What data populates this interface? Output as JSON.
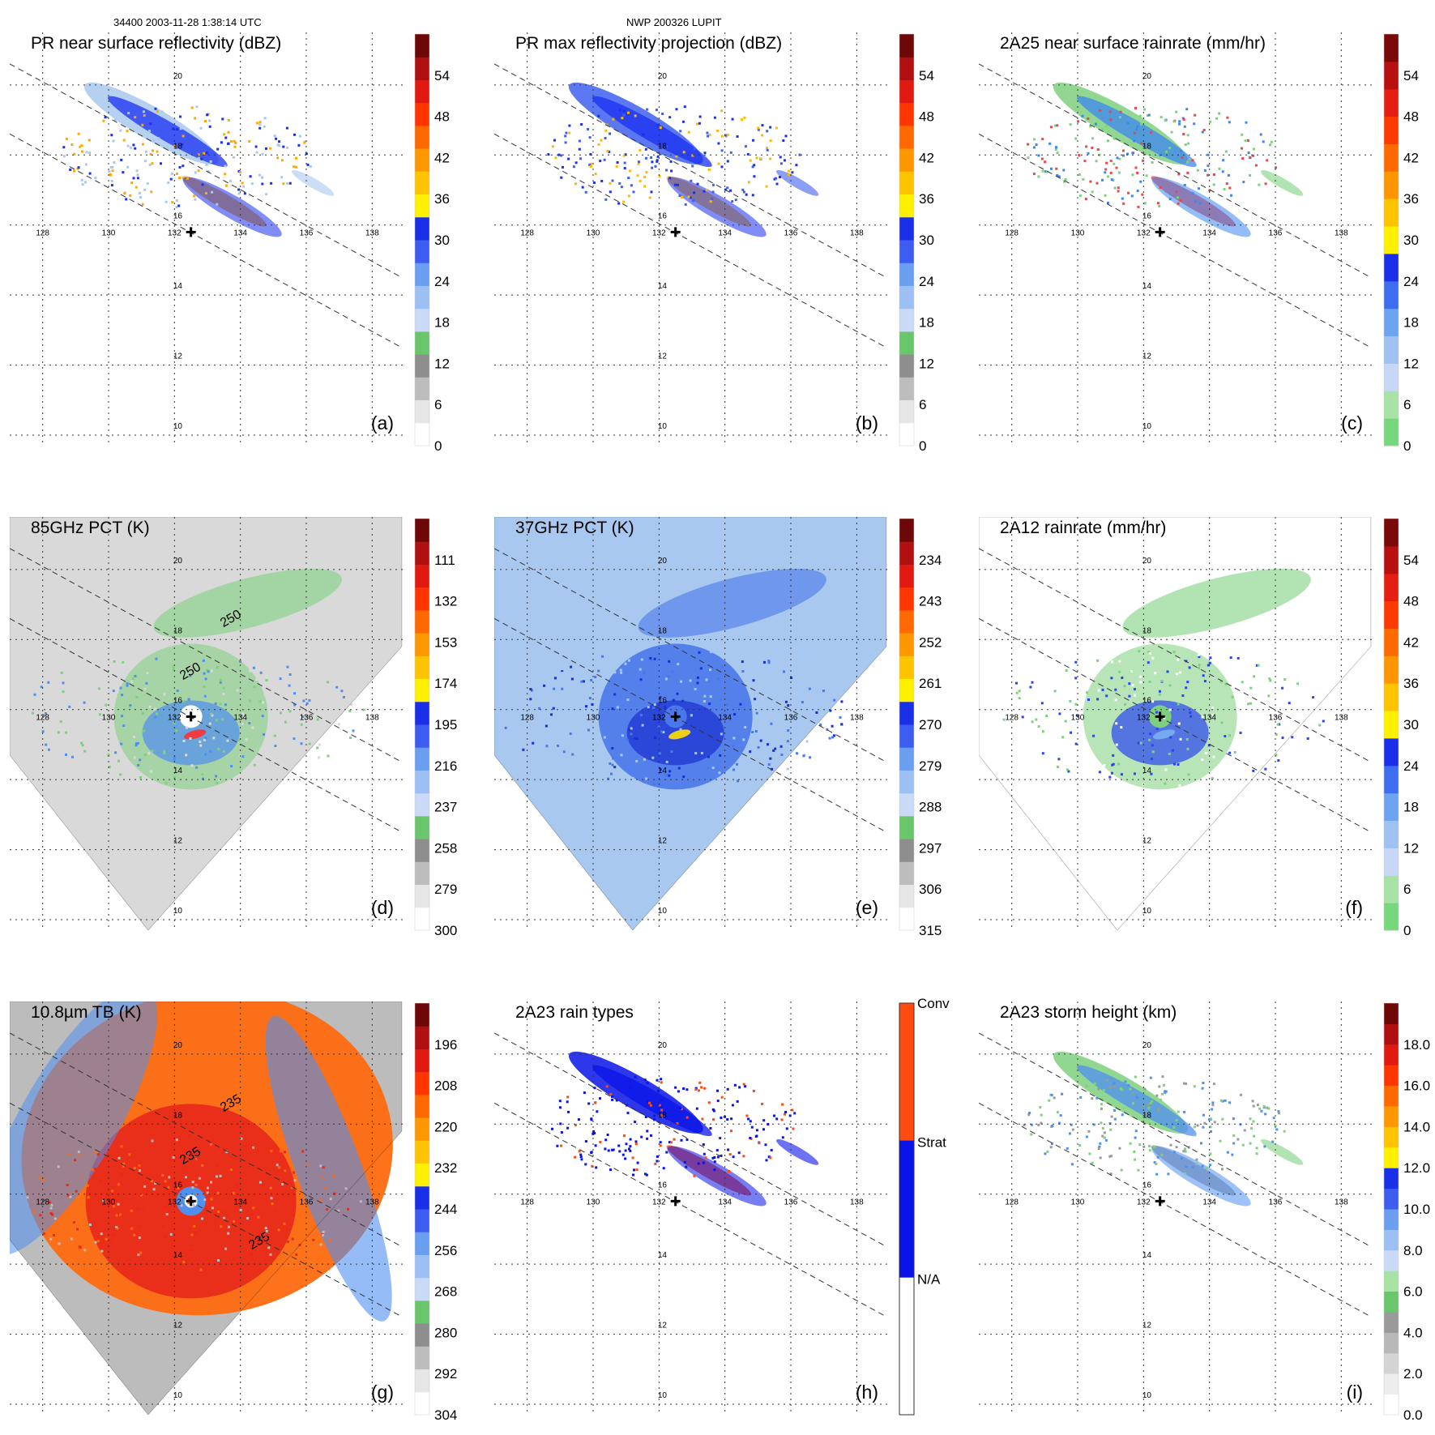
{
  "header": {
    "left": "34400 2003-11-28 1:38:14 UTC",
    "center": "NWP 200326 LUPIT"
  },
  "grid": {
    "lon_ticks": [
      128,
      130,
      132,
      134,
      136,
      138
    ],
    "lat_ticks": [
      20,
      18,
      16,
      14,
      12,
      10
    ],
    "lon_range": [
      127,
      139
    ],
    "lat_range": [
      21.5,
      9.7
    ]
  },
  "storm_center": {
    "lon": 132.5,
    "lat": 15.8
  },
  "chart_data": [
    {
      "type": "heatmap",
      "panel_label": "(a)",
      "title": "PR near surface reflectivity (dBZ)",
      "swath": "PR",
      "colorbar": "standard",
      "colorbar_ticks": [
        "0",
        "6",
        "12",
        "18",
        "24",
        "30",
        "36",
        "42",
        "48",
        "54"
      ],
      "colors": {
        "low": "#ebebeb",
        "mid": "#a9c8f0",
        "high": "#1a2ff0",
        "accent": "#ffa800"
      }
    },
    {
      "type": "heatmap",
      "panel_label": "(b)",
      "title": "PR max reflectivity projection (dBZ)",
      "swath": "PR",
      "colorbar": "standard",
      "colorbar_ticks": [
        "0",
        "6",
        "12",
        "18",
        "24",
        "30",
        "36",
        "42",
        "48",
        "54"
      ],
      "colors": {
        "low": "#ffffff",
        "mid": "#3f5ff0",
        "high": "#1a2ff0",
        "accent": "#ffb800"
      }
    },
    {
      "type": "heatmap",
      "panel_label": "(c)",
      "title": "2A25 near surface rainrate (mm/hr)",
      "swath": "PR",
      "colorbar": "rain",
      "colorbar_ticks": [
        "0",
        "6",
        "12",
        "18",
        "24",
        "30",
        "36",
        "42",
        "48",
        "54"
      ],
      "colors": {
        "low": "#ffffff",
        "mid": "#7ed07e",
        "high": "#3d86f0",
        "accent": "#e84848"
      }
    },
    {
      "type": "heatmap",
      "panel_label": "(d)",
      "title": "85GHz PCT (K)",
      "swath": "TMI",
      "colorbar": "reversed",
      "colorbar_ticks": [
        "300",
        "279",
        "258",
        "237",
        "216",
        "195",
        "174",
        "153",
        "132",
        "111"
      ],
      "contour_labels": [
        "250",
        "250"
      ],
      "colors": {
        "low": "#d9d9d9",
        "mid": "#7ed07e",
        "high": "#4f8ff0",
        "accent": "#ff3030"
      }
    },
    {
      "type": "heatmap",
      "panel_label": "(e)",
      "title": "37GHz PCT (K)",
      "swath": "TMI",
      "colorbar": "reversed",
      "colorbar_ticks": [
        "315",
        "306",
        "297",
        "288",
        "279",
        "270",
        "261",
        "252",
        "243",
        "234"
      ],
      "colors": {
        "low": "#a9c8f0",
        "mid": "#4a78ea",
        "high": "#1a2fd0",
        "accent": "#ffe000"
      }
    },
    {
      "type": "heatmap",
      "panel_label": "(f)",
      "title": "2A12 rainrate (mm/hr)",
      "swath": "TMI",
      "colorbar": "rain",
      "colorbar_ticks": [
        "0",
        "6",
        "12",
        "18",
        "24",
        "30",
        "36",
        "42",
        "48",
        "54"
      ],
      "colors": {
        "low": "#ffffff",
        "mid": "#7ed07e",
        "high": "#2a45f0",
        "accent": "#79b0f0"
      }
    },
    {
      "type": "heatmap",
      "panel_label": "(g)",
      "title": "10.8µm TB (K)",
      "swath": "VIRS",
      "colorbar": "reversed",
      "colorbar_ticks": [
        "304",
        "292",
        "280",
        "268",
        "256",
        "244",
        "232",
        "220",
        "208",
        "196"
      ],
      "contour_labels": [
        "235",
        "235",
        "235"
      ],
      "colors": {
        "low": "#bcbcbc",
        "mid": "#ff6a10",
        "high": "#e82a1a",
        "accent": "#4f8ff0"
      }
    },
    {
      "type": "heatmap",
      "panel_label": "(h)",
      "title": "2A23 rain types",
      "swath": "PR",
      "colorbar": "categorical",
      "colorbar_ticks": [
        "N/A",
        "Strat",
        "Conv"
      ],
      "colors": {
        "low": "#ffffff",
        "mid": "#0a14e8",
        "high": "#0a14e8",
        "accent": "#ff4a10"
      }
    },
    {
      "type": "heatmap",
      "panel_label": "(i)",
      "title": "2A23 storm height (km)",
      "swath": "PR",
      "colorbar": "height",
      "colorbar_ticks": [
        "0.0",
        "2.0",
        "4.0",
        "6.0",
        "8.0",
        "10.0",
        "12.0",
        "14.0",
        "16.0",
        "18.0"
      ],
      "colors": {
        "low": "#c9c9c9",
        "mid": "#7ed07e",
        "high": "#4f8ff0",
        "accent": "#9a9a9a"
      }
    }
  ]
}
